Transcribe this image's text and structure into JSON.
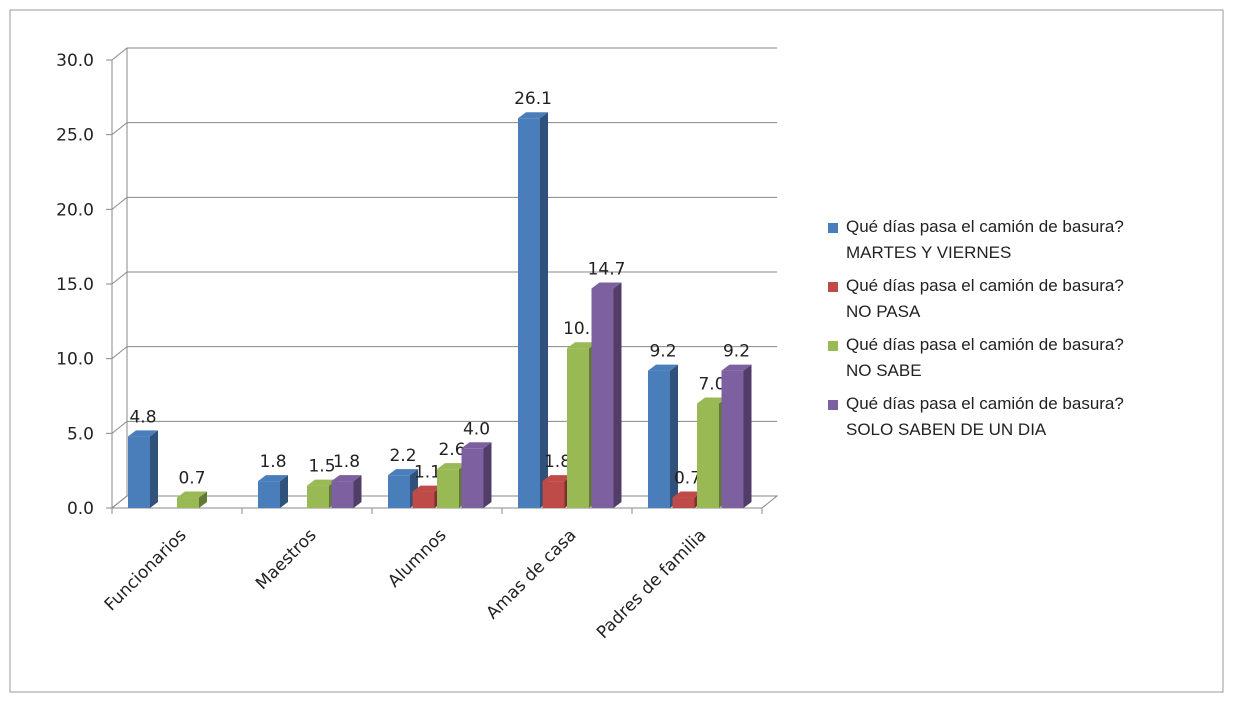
{
  "chart_data": {
    "type": "bar3d",
    "categories": [
      "Funcionarios",
      "Maestros",
      "Alumnos",
      "Amas de casa",
      "Padres de familia"
    ],
    "series": [
      {
        "name": "Qué días pasa el camión de basura? MARTES Y VIERNES",
        "color": "#4a7ebb",
        "values": [
          4.8,
          1.8,
          2.2,
          26.1,
          9.2
        ],
        "value_labels": [
          "4.8",
          "1.8",
          "2.2",
          "26.1",
          "9.2"
        ]
      },
      {
        "name": "Qué días pasa el camión de basura? NO PASA",
        "color": "#be4b48",
        "values": [
          null,
          null,
          1.1,
          1.8,
          0.7
        ],
        "value_labels": [
          null,
          null,
          "1.1",
          "1.8",
          "0.7"
        ]
      },
      {
        "name": "Qué días pasa el camión de basura? NO SABE",
        "color": "#98b954",
        "values": [
          0.7,
          1.5,
          2.6,
          10.7,
          7.0
        ],
        "value_labels": [
          "0.7",
          "1.5",
          "2.6",
          "10.7",
          "7.0"
        ]
      },
      {
        "name": "Qué días pasa el camión de basura? SOLO SABEN DE UN DIA",
        "color": "#7d60a0",
        "values": [
          null,
          1.8,
          4.0,
          14.7,
          9.2
        ],
        "value_labels": [
          null,
          "1.8",
          "4.0",
          "14.7",
          "9.2"
        ]
      }
    ],
    "ylim": [
      0,
      30
    ],
    "yticks": [
      {
        "value": 0,
        "label": "0.0"
      },
      {
        "value": 5,
        "label": "5.0"
      },
      {
        "value": 10,
        "label": "10.0"
      },
      {
        "value": 15,
        "label": "15.0"
      },
      {
        "value": 20,
        "label": "20.0"
      },
      {
        "value": 25,
        "label": "25.0"
      },
      {
        "value": 30,
        "label": "30.0"
      }
    ],
    "grid": true,
    "legend": "right"
  }
}
